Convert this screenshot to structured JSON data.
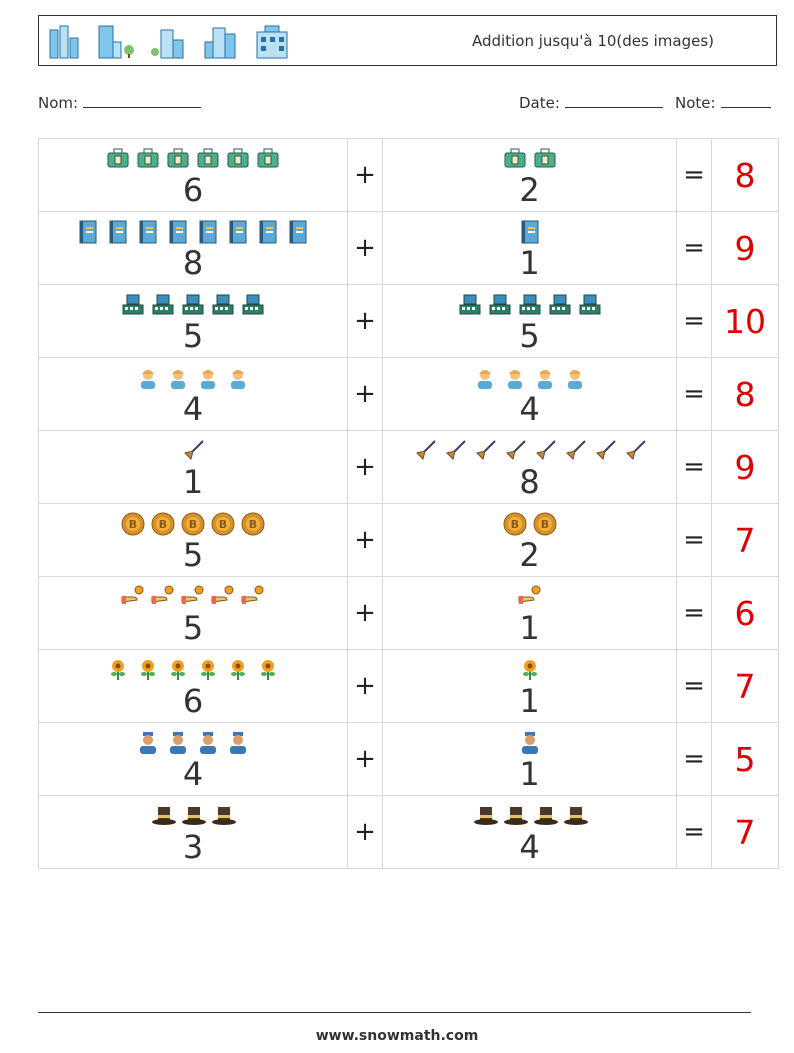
{
  "header": {
    "title": "Addition jusqu'à 10(des images)",
    "logo_icons": [
      "building-icon",
      "office-tower-icon",
      "city-block-icon",
      "skyscrapers-icon",
      "apartment-icon"
    ]
  },
  "meta": {
    "name_label": "Nom:",
    "date_label": "Date:",
    "note_label": "Note:"
  },
  "operators": {
    "plus": "+",
    "equals": "="
  },
  "rows": [
    {
      "a": "6",
      "b": "2",
      "result": "8",
      "icon": "suitcase-icon",
      "color": "#4caf8a"
    },
    {
      "a": "8",
      "b": "1",
      "result": "9",
      "icon": "notebook-icon",
      "color": "#5aa9d6"
    },
    {
      "a": "5",
      "b": "5",
      "result": "10",
      "icon": "cash-register-icon",
      "color": "#2e7d6b"
    },
    {
      "a": "4",
      "b": "4",
      "result": "8",
      "icon": "worker-icon",
      "color": "#e8a850"
    },
    {
      "a": "1",
      "b": "8",
      "result": "9",
      "icon": "broom-icon",
      "color": "#c98a3a"
    },
    {
      "a": "5",
      "b": "2",
      "result": "7",
      "icon": "bitcoin-icon",
      "color": "#d9902a"
    },
    {
      "a": "5",
      "b": "1",
      "result": "6",
      "icon": "coin-hand-icon",
      "color": "#e86a4a"
    },
    {
      "a": "6",
      "b": "1",
      "result": "7",
      "icon": "flower-icon",
      "color": "#f0a020"
    },
    {
      "a": "4",
      "b": "1",
      "result": "5",
      "icon": "nurse-icon",
      "color": "#3b78b8"
    },
    {
      "a": "3",
      "b": "4",
      "result": "7",
      "icon": "pilgrim-hat-icon",
      "color": "#4a3a2a"
    }
  ],
  "footer": {
    "url": "www.snowmath.com"
  }
}
